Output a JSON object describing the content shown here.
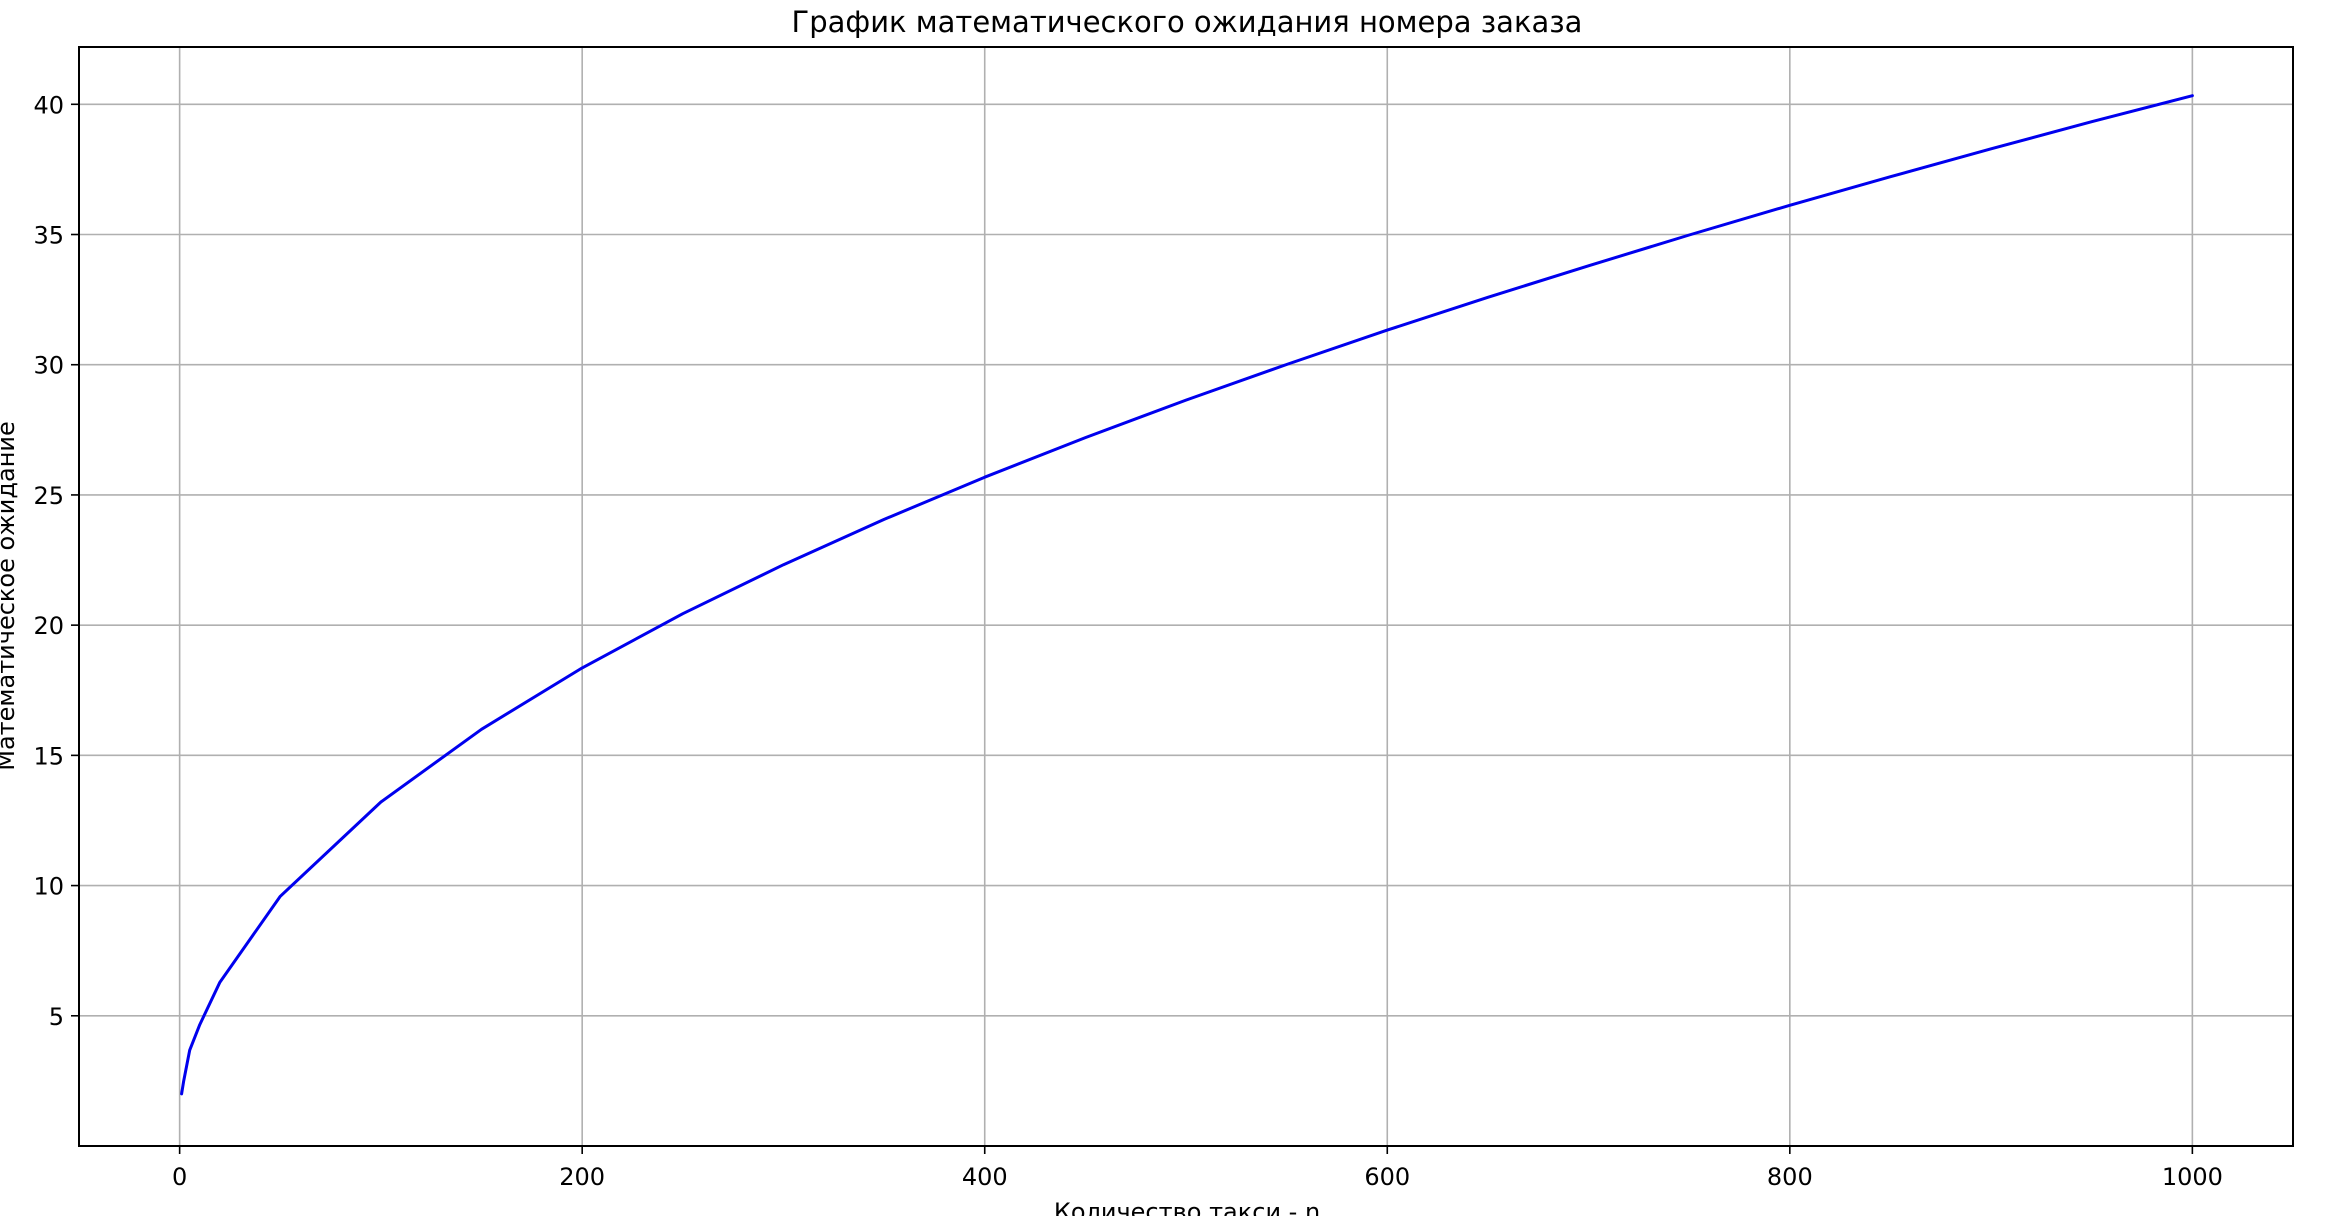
{
  "chart_data": {
    "type": "line",
    "title": "График математического ожидания номера заказа",
    "xlabel": "Количество такси - n",
    "ylabel": "Математическое ожидание",
    "xlim": [
      -50,
      1050
    ],
    "ylim": [
      0,
      42.2
    ],
    "x_ticks": [
      0,
      200,
      400,
      600,
      800,
      1000
    ],
    "y_ticks": [
      5,
      10,
      15,
      20,
      25,
      30,
      35,
      40
    ],
    "grid": true,
    "legend": "none",
    "colors": {
      "line": "#0000ee",
      "grid": "#b0b0b0",
      "axes": "#000000"
    },
    "series": [
      {
        "color": "#0000ee",
        "x": [
          1,
          2,
          5,
          10,
          20,
          50,
          100,
          150,
          200,
          250,
          300,
          350,
          400,
          450,
          500,
          550,
          600,
          650,
          700,
          750,
          800,
          850,
          900,
          950,
          1000
        ],
        "y": [
          2.0,
          2.5,
          3.68,
          4.66,
          6.29,
          9.59,
          13.21,
          16.0,
          18.36,
          20.44,
          22.32,
          24.06,
          25.68,
          27.2,
          28.64,
          30.01,
          31.33,
          32.59,
          33.8,
          34.98,
          36.12,
          37.22,
          38.29,
          39.33,
          40.33
        ]
      }
    ]
  }
}
